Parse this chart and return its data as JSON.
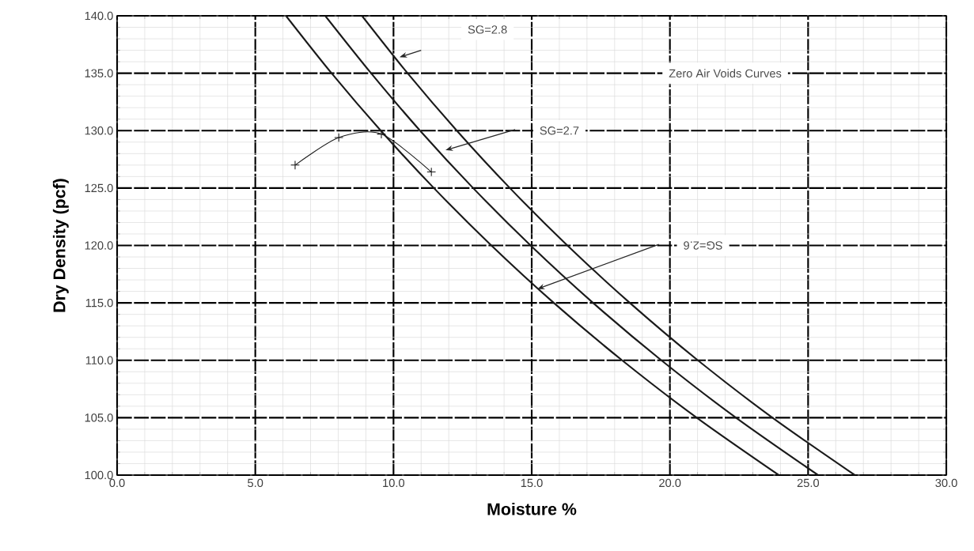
{
  "chart_data": {
    "type": "line",
    "xlabel": "Moisture %",
    "ylabel": "Dry Density (pcf)",
    "xlim": [
      0,
      30
    ],
    "ylim": [
      100,
      140
    ],
    "xticks": [
      {
        "value": 0,
        "label": "0.0"
      },
      {
        "value": 5,
        "label": "5.0"
      },
      {
        "value": 10,
        "label": "10.0"
      },
      {
        "value": 15,
        "label": "15.0"
      },
      {
        "value": 20,
        "label": "20.0"
      },
      {
        "value": 25,
        "label": "25.0"
      },
      {
        "value": 30,
        "label": "30.0"
      }
    ],
    "yticks": [
      {
        "value": 100,
        "label": "100.0"
      },
      {
        "value": 105,
        "label": "105.0"
      },
      {
        "value": 110,
        "label": "110.0"
      },
      {
        "value": 115,
        "label": "115.0"
      },
      {
        "value": 120,
        "label": "120.0"
      },
      {
        "value": 125,
        "label": "125.0"
      },
      {
        "value": 130,
        "label": "130.0"
      },
      {
        "value": 135,
        "label": "135.0"
      },
      {
        "value": 140,
        "label": "140.0"
      }
    ],
    "grid": true,
    "series": [
      {
        "color": "#1a1a1a",
        "marker": "none",
        "x": [
          6.11,
          7.76,
          9.54,
          11.46,
          13.54,
          15.8,
          18.27,
          20.97,
          23.94
        ],
        "values": [
          140,
          135,
          130,
          125,
          120,
          115,
          110,
          105,
          100
        ]
      },
      {
        "color": "#1a1a1a",
        "marker": "none",
        "x": [
          7.53,
          9.19,
          10.96,
          12.88,
          14.96,
          17.22,
          19.69,
          22.39,
          25.36
        ],
        "values": [
          140,
          135,
          130,
          125,
          120,
          115,
          110,
          105,
          100
        ]
      },
      {
        "color": "#1a1a1a",
        "marker": "none",
        "x": [
          8.86,
          10.51,
          12.29,
          14.21,
          16.29,
          18.55,
          21.01,
          23.71,
          26.69
        ],
        "values": [
          140,
          135,
          130,
          125,
          120,
          115,
          110,
          105,
          100
        ]
      },
      {
        "color": "#1a1a1a",
        "marker": "cross",
        "x": [
          6.44,
          8.02,
          9.56,
          11.37
        ],
        "values": [
          127.0,
          129.4,
          129.7,
          126.4
        ]
      }
    ],
    "annotations": [
      "SG=2.8",
      "SG=2.7",
      "SG=2.6",
      "Zero Air Voids Curves"
    ]
  }
}
